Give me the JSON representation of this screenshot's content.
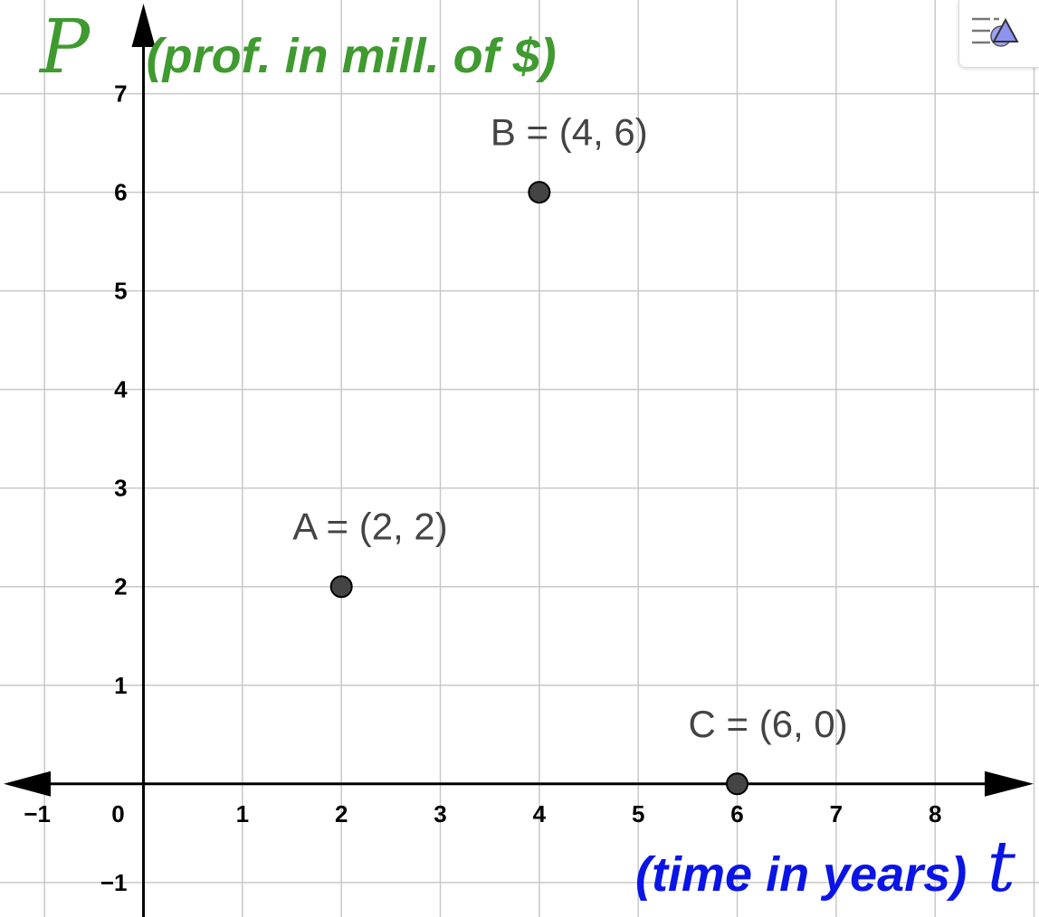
{
  "chart_data": {
    "type": "scatter",
    "xlim": [
      -1.45,
      9.05
    ],
    "ylim": [
      -1.35,
      7.95
    ],
    "grid": true,
    "x_ticks": [
      -1,
      0,
      1,
      2,
      3,
      4,
      5,
      6,
      7,
      8
    ],
    "y_ticks": [
      -1,
      1,
      2,
      3,
      4,
      5,
      6,
      7
    ],
    "x_tick_labels": [
      "−1",
      "0",
      "1",
      "2",
      "3",
      "4",
      "5",
      "6",
      "7",
      "8"
    ],
    "y_tick_labels": [
      "−1",
      "1",
      "2",
      "3",
      "4",
      "5",
      "6",
      "7"
    ],
    "y_axis_label": {
      "variable": "P",
      "text": "(prof. in mill. of $)"
    },
    "x_axis_label": {
      "text": "(time in years)",
      "variable": "t"
    },
    "points": [
      {
        "name": "A",
        "x": 2,
        "y": 2,
        "label": "A = (2, 2)"
      },
      {
        "name": "B",
        "x": 4,
        "y": 6,
        "label": "B = (4, 6)"
      },
      {
        "name": "C",
        "x": 6,
        "y": 0,
        "label": "C = (6, 0)"
      }
    ]
  },
  "colors": {
    "y_label": "#3f9a2f",
    "x_label": "#0a14e6",
    "point_fill": "#444444",
    "grid": "#c8c8c8",
    "axes": "#000000"
  },
  "toolbar": {
    "style_bar_icon": "style-bar-toggle-icon"
  }
}
